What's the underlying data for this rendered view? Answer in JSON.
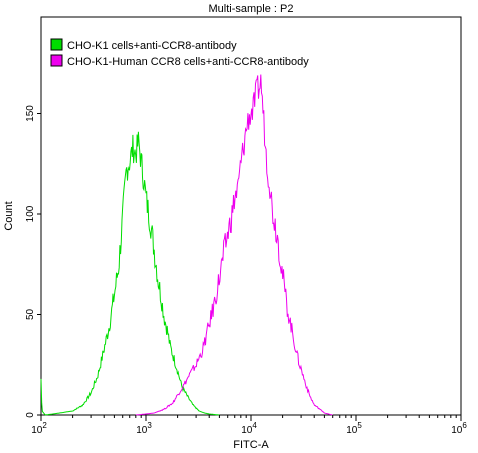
{
  "chart_data": {
    "type": "line",
    "title": "Multi-sample : P2",
    "xlabel": "FITC-A",
    "ylabel": "Count",
    "xscale": "log",
    "xlim": [
      100,
      1000000
    ],
    "ylim": [
      0,
      198
    ],
    "x_ticks": [
      {
        "value": 100,
        "base": "10",
        "exp": "2"
      },
      {
        "value": 1000,
        "base": "10",
        "exp": "3"
      },
      {
        "value": 10000,
        "base": "10",
        "exp": "4"
      },
      {
        "value": 100000,
        "base": "10",
        "exp": "5"
      },
      {
        "value": 1000000,
        "base": "10",
        "exp": "6"
      }
    ],
    "y_ticks": [
      0,
      50,
      100,
      150
    ],
    "grid": false,
    "legend_position": "top-left",
    "series": [
      {
        "name": "CHO-K1 cells+anti-CCR8-antibody",
        "color": "#00dd00",
        "points": [
          [
            100,
            18
          ],
          [
            102,
            2
          ],
          [
            110,
            0
          ],
          [
            150,
            1
          ],
          [
            200,
            2
          ],
          [
            250,
            5
          ],
          [
            300,
            11
          ],
          [
            350,
            20
          ],
          [
            400,
            33
          ],
          [
            450,
            45
          ],
          [
            500,
            60
          ],
          [
            550,
            74
          ],
          [
            600,
            98
          ],
          [
            650,
            122
          ],
          [
            700,
            126
          ],
          [
            750,
            133
          ],
          [
            800,
            130
          ],
          [
            850,
            136
          ],
          [
            900,
            126
          ],
          [
            950,
            118
          ],
          [
            1000,
            108
          ],
          [
            1100,
            96
          ],
          [
            1200,
            82
          ],
          [
            1300,
            68
          ],
          [
            1400,
            58
          ],
          [
            1500,
            48
          ],
          [
            1600,
            42
          ],
          [
            1700,
            34
          ],
          [
            1800,
            30
          ],
          [
            2000,
            22
          ],
          [
            2200,
            14
          ],
          [
            2500,
            9
          ],
          [
            2800,
            5
          ],
          [
            3200,
            2
          ],
          [
            3600,
            1
          ],
          [
            4000,
            0.5
          ],
          [
            5000,
            0
          ]
        ]
      },
      {
        "name": "CHO-K1-Human CCR8 cells+anti-CCR8-antibody",
        "color": "#ee00ee",
        "points": [
          [
            800,
            0
          ],
          [
            1000,
            0.5
          ],
          [
            1200,
            1
          ],
          [
            1500,
            3
          ],
          [
            1800,
            6
          ],
          [
            2000,
            10
          ],
          [
            2300,
            15
          ],
          [
            2600,
            20
          ],
          [
            3000,
            25
          ],
          [
            3500,
            33
          ],
          [
            4000,
            45
          ],
          [
            4500,
            56
          ],
          [
            5000,
            68
          ],
          [
            5500,
            80
          ],
          [
            6000,
            90
          ],
          [
            6500,
            98
          ],
          [
            7000,
            108
          ],
          [
            7500,
            112
          ],
          [
            8000,
            125
          ],
          [
            8500,
            133
          ],
          [
            9000,
            142
          ],
          [
            9500,
            148
          ],
          [
            10000,
            150
          ],
          [
            10500,
            152
          ],
          [
            11000,
            158
          ],
          [
            11500,
            162
          ],
          [
            12000,
            163
          ],
          [
            12500,
            166
          ],
          [
            13000,
            152
          ],
          [
            13500,
            140
          ],
          [
            14000,
            128
          ],
          [
            15000,
            116
          ],
          [
            16000,
            102
          ],
          [
            18000,
            88
          ],
          [
            20000,
            70
          ],
          [
            22000,
            54
          ],
          [
            25000,
            40
          ],
          [
            28000,
            28
          ],
          [
            32000,
            18
          ],
          [
            36000,
            10
          ],
          [
            40000,
            5
          ],
          [
            45000,
            3
          ],
          [
            50000,
            1
          ],
          [
            60000,
            0
          ]
        ]
      }
    ]
  }
}
